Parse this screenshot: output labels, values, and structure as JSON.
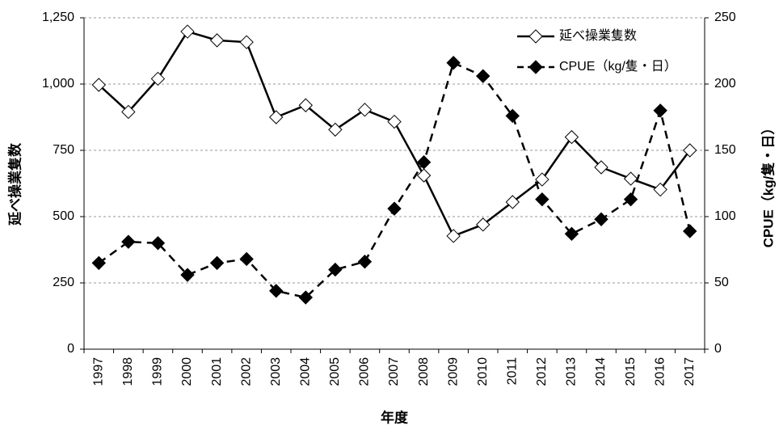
{
  "chart_data": {
    "type": "line",
    "x_label": "年度",
    "y_label": "延べ操業隻数",
    "y2_label": "CPUE（kg/隻・日）",
    "categories": [
      "1997",
      "1998",
      "1999",
      "2000",
      "2001",
      "2002",
      "2003",
      "2004",
      "2005",
      "2006",
      "2007",
      "2008",
      "2009",
      "2010",
      "2011",
      "2012",
      "2013",
      "2014",
      "2015",
      "2016",
      "2017"
    ],
    "series": [
      {
        "name": "延べ操業隻数",
        "color": "#000000",
        "marker": "open-diamond",
        "dash": "solid",
        "values": [
          997,
          895,
          1020,
          1198,
          1165,
          1158,
          875,
          920,
          828,
          903,
          858,
          655,
          427,
          470,
          555,
          640,
          800,
          686,
          643,
          602,
          750
        ]
      },
      {
        "name": "CPUE（kg/隻・日）",
        "color": "#000000",
        "marker": "filled-diamond",
        "dash": "dashed",
        "axis": "y2",
        "values": [
          65,
          81,
          80,
          56,
          65,
          68,
          44,
          39,
          60,
          66,
          106,
          141,
          216,
          206,
          176,
          113,
          87,
          98,
          113,
          180,
          89
        ]
      }
    ],
    "ylim": [
      0,
      1250
    ],
    "yticks": [
      0,
      250,
      500,
      750,
      {
        "value": 1000,
        "label": "1,000"
      },
      {
        "value": 1250,
        "label": "1,250"
      }
    ],
    "y2lim": [
      0,
      250
    ],
    "y2ticks": [
      0,
      50,
      100,
      150,
      200,
      250
    ],
    "grid": true,
    "legend": "top-right"
  }
}
